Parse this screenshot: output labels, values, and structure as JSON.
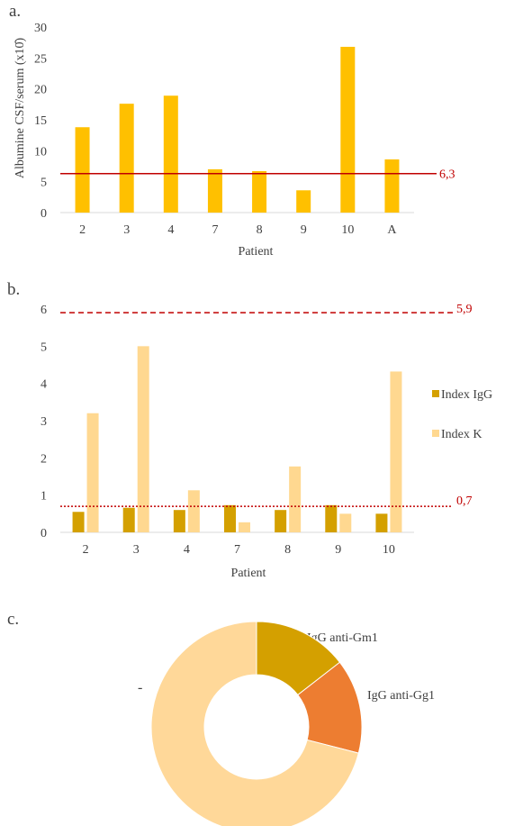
{
  "panels": {
    "a": "a.",
    "b": "b.",
    "c": "c."
  },
  "colors": {
    "bar_a": "#FFC000",
    "igg": "#D4A000",
    "k": "#FFD890",
    "ref_line": "#C00000",
    "slice_gm1": "#D4A000",
    "slice_gg1": "#ED7D31",
    "slice_rest": "#FFD899"
  },
  "chart_data": [
    {
      "type": "bar",
      "categories": [
        "2",
        "3",
        "4",
        "7",
        "8",
        "9",
        "10",
        "A"
      ],
      "values": [
        13.8,
        17.6,
        18.9,
        7.0,
        6.7,
        3.6,
        26.8,
        8.6
      ],
      "xlabel": "Patient",
      "ylabel": "Albumine CSF/serum (x10̂)",
      "ylim": [
        0,
        30
      ],
      "yticks": [
        "0",
        "5",
        "10",
        "15",
        "20",
        "25",
        "30"
      ],
      "reference_line": {
        "value": 6.3,
        "label": "6,3",
        "style": "solid"
      },
      "grid": false
    },
    {
      "type": "bar",
      "categories": [
        "2",
        "3",
        "4",
        "7",
        "8",
        "9",
        "10"
      ],
      "series": [
        {
          "name": "Index IgG",
          "values": [
            0.55,
            0.66,
            0.6,
            0.73,
            0.6,
            0.73,
            0.5
          ]
        },
        {
          "name": "Index K",
          "values": [
            3.2,
            5.0,
            1.13,
            0.27,
            1.77,
            0.5,
            4.32
          ]
        }
      ],
      "xlabel": "Patient",
      "ylabel": "",
      "ylim": [
        0,
        6
      ],
      "yticks": [
        "0",
        "1",
        "2",
        "3",
        "4",
        "5",
        "6"
      ],
      "reference_lines": [
        {
          "value": 5.9,
          "label": "5,9",
          "style": "dashed"
        },
        {
          "value": 0.7,
          "label": "0,7",
          "style": "dotted"
        }
      ],
      "legend": "right",
      "grid": false
    },
    {
      "type": "pie",
      "donut": true,
      "labels": [
        "IgG anti-Gm1",
        "IgG anti-Gg1",
        "-"
      ],
      "values": [
        14.5,
        14.5,
        71
      ]
    }
  ]
}
